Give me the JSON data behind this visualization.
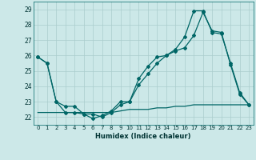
{
  "xlabel": "Humidex (Indice chaleur)",
  "ylabel": "",
  "background_color": "#cce8e8",
  "grid_color": "#aacccc",
  "line_color": "#006666",
  "xlim": [
    -0.5,
    23.5
  ],
  "ylim": [
    21.5,
    29.5
  ],
  "yticks": [
    22,
    23,
    24,
    25,
    26,
    27,
    28,
    29
  ],
  "xticks": [
    0,
    1,
    2,
    3,
    4,
    5,
    6,
    7,
    8,
    9,
    10,
    11,
    12,
    13,
    14,
    15,
    16,
    17,
    18,
    19,
    20,
    21,
    22,
    23
  ],
  "series1": [
    25.9,
    25.5,
    23.0,
    22.7,
    22.7,
    22.2,
    21.9,
    22.1,
    22.4,
    23.0,
    23.0,
    24.5,
    25.3,
    25.9,
    26.0,
    26.4,
    27.2,
    28.9,
    28.9,
    27.5,
    27.4,
    25.5,
    23.6,
    22.8
  ],
  "series2": [
    25.9,
    25.5,
    23.0,
    22.3,
    22.3,
    22.2,
    22.2,
    22.0,
    22.3,
    22.8,
    23.0,
    24.1,
    24.8,
    25.5,
    26.0,
    26.3,
    26.5,
    27.3,
    28.8,
    27.6,
    27.5,
    25.4,
    23.5,
    22.8
  ],
  "series3": [
    22.3,
    22.3,
    22.3,
    22.3,
    22.3,
    22.3,
    22.3,
    22.3,
    22.3,
    22.4,
    22.5,
    22.5,
    22.5,
    22.6,
    22.6,
    22.7,
    22.7,
    22.8,
    22.8,
    22.8,
    22.8,
    22.8,
    22.8,
    22.8
  ]
}
